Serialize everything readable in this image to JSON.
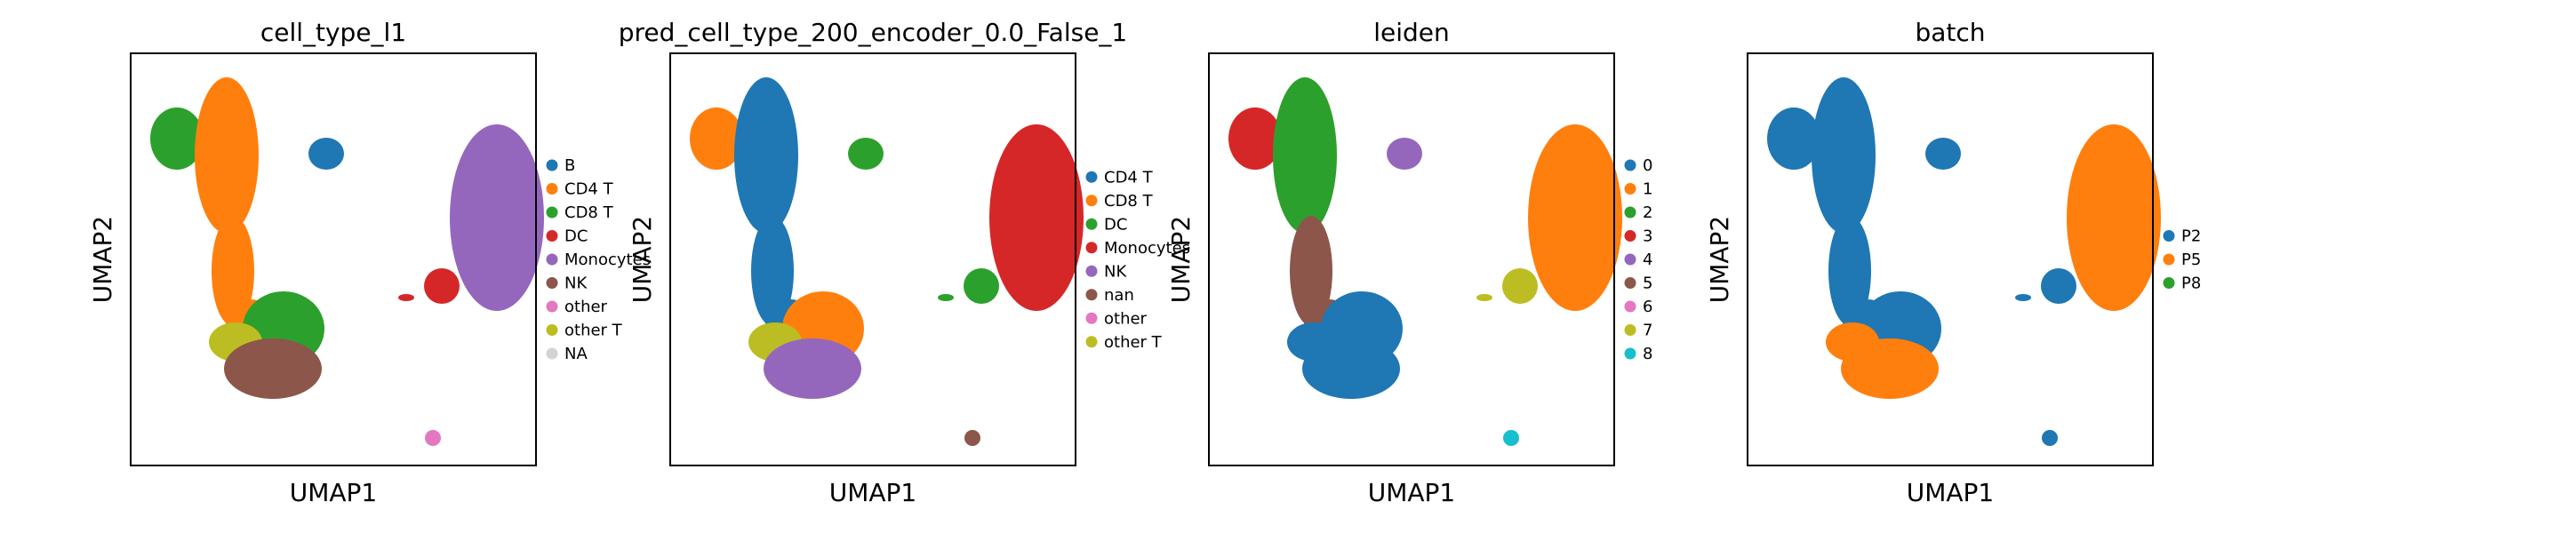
{
  "chart_data": [
    {
      "type": "scatter",
      "title": "cell_type_l1",
      "xlabel": "UMAP1",
      "ylabel": "UMAP2",
      "legend": {
        "placement": "right",
        "entries": [
          {
            "label": "B",
            "color": "#1f77b4"
          },
          {
            "label": "CD4 T",
            "color": "#ff7f0e"
          },
          {
            "label": "CD8 T",
            "color": "#2ca02c"
          },
          {
            "label": "DC",
            "color": "#d62728"
          },
          {
            "label": "Monocytes",
            "color": "#9467bd"
          },
          {
            "label": "NK",
            "color": "#8c564b"
          },
          {
            "label": "other",
            "color": "#e377c2"
          },
          {
            "label": "other T",
            "color": "#bcbd22"
          },
          {
            "label": "NA",
            "color": "#d3d3d3"
          }
        ]
      },
      "regions": {
        "b": "B",
        "tl": "CD8 T",
        "neck": "CD4 T",
        "stalk": "CD4 T",
        "trunk": "CD4 T",
        "right": "CD8 T",
        "lowerleft": "other T",
        "bottom": "NK",
        "mono": "Monocytes",
        "link": "DC",
        "bridge": "DC",
        "islet": "other"
      }
    },
    {
      "type": "scatter",
      "title": "pred_cell_type_200_encoder_0.0_False_1",
      "xlabel": "UMAP1",
      "ylabel": "UMAP2",
      "legend": {
        "placement": "right",
        "entries": [
          {
            "label": "CD4 T",
            "color": "#1f77b4"
          },
          {
            "label": "CD8 T",
            "color": "#ff7f0e"
          },
          {
            "label": "DC",
            "color": "#2ca02c"
          },
          {
            "label": "Monocytes",
            "color": "#d62728"
          },
          {
            "label": "NK",
            "color": "#9467bd"
          },
          {
            "label": "nan",
            "color": "#8c564b"
          },
          {
            "label": "other",
            "color": "#e377c2"
          },
          {
            "label": "other T",
            "color": "#bcbd22"
          }
        ]
      },
      "regions": {
        "b": "DC",
        "tl": "CD8 T",
        "neck": "CD4 T",
        "stalk": "CD4 T",
        "trunk": "CD4 T",
        "right": "CD8 T",
        "lowerleft": "other T",
        "bottom": "NK",
        "mono": "Monocytes",
        "link": "DC",
        "bridge": "DC",
        "islet": "nan"
      }
    },
    {
      "type": "scatter",
      "title": "leiden",
      "xlabel": "UMAP1",
      "ylabel": "UMAP2",
      "legend": {
        "placement": "right",
        "entries": [
          {
            "label": "0",
            "color": "#1f77b4"
          },
          {
            "label": "1",
            "color": "#ff7f0e"
          },
          {
            "label": "2",
            "color": "#2ca02c"
          },
          {
            "label": "3",
            "color": "#d62728"
          },
          {
            "label": "4",
            "color": "#9467bd"
          },
          {
            "label": "5",
            "color": "#8c564b"
          },
          {
            "label": "6",
            "color": "#e377c2"
          },
          {
            "label": "7",
            "color": "#bcbd22"
          },
          {
            "label": "8",
            "color": "#17becf"
          }
        ]
      },
      "regions": {
        "b": "4",
        "tl": "3",
        "neck": "2",
        "stalk": "5",
        "trunk": "5",
        "right": "0",
        "lowerleft": "0",
        "bottom": "0",
        "mono": "1",
        "link": "7",
        "bridge": "7",
        "islet": "8"
      }
    },
    {
      "type": "scatter",
      "title": "batch",
      "xlabel": "UMAP1",
      "ylabel": "UMAP2",
      "legend": {
        "placement": "right",
        "entries": [
          {
            "label": "P2",
            "color": "#1f77b4"
          },
          {
            "label": "P5",
            "color": "#ff7f0e"
          },
          {
            "label": "P8",
            "color": "#2ca02c"
          }
        ]
      },
      "regions": {
        "b": "P2",
        "tl": "P2",
        "neck": "P2",
        "stalk": "P2",
        "trunk": "P2",
        "right": "P2",
        "lowerleft": "P5",
        "bottom": "P5",
        "mono": "P5",
        "link": "P2",
        "bridge": "P2",
        "islet": "P2"
      }
    }
  ]
}
